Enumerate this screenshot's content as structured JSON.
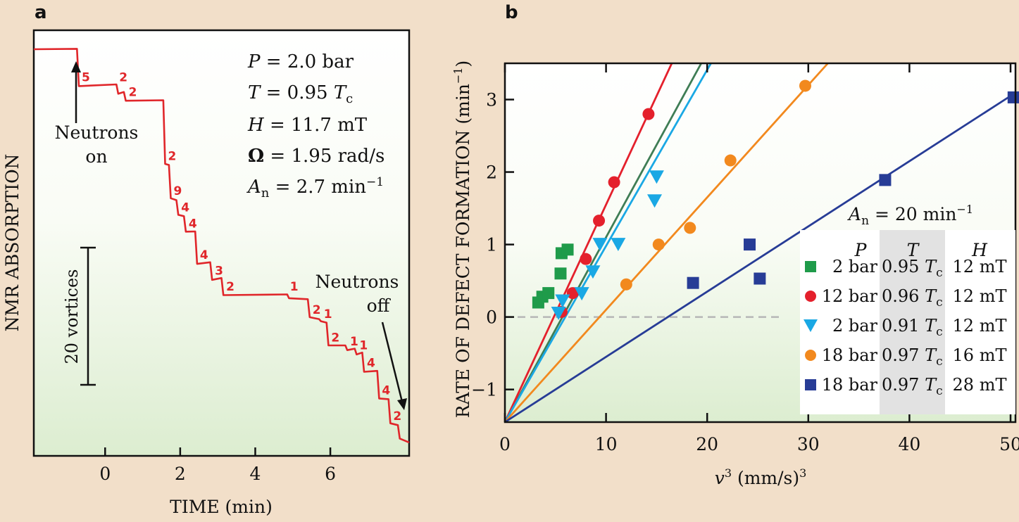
{
  "panel_labels": {
    "a": "a",
    "b": "b"
  },
  "colors": {
    "background": "#f2dfc9",
    "trace": "#e0262a",
    "green": "#1f9b4a",
    "red": "#e4202c",
    "cyan": "#1aa8e4",
    "orange": "#f2891e",
    "navy": "#273c96",
    "green_fit": "#3f7d55"
  },
  "chart_data": [
    {
      "type": "line",
      "title": "",
      "xlabel": "TIME (min)",
      "ylabel": "NMR ABSORPTION",
      "xlim": [
        -1.9,
        8.1
      ],
      "ylim": [
        0,
        100
      ],
      "xticks": [
        0,
        2,
        4,
        6
      ],
      "xtick_labels": [
        "0",
        "2",
        "4",
        "6"
      ],
      "grid": false,
      "series": [
        {
          "name": "NMR absorption trace",
          "x": [
            -1.9,
            -0.75,
            -0.7,
            0.3,
            0.35,
            0.5,
            0.55,
            1.55,
            1.6,
            1.7,
            1.75,
            1.9,
            1.95,
            2.1,
            2.15,
            2.4,
            2.45,
            2.8,
            2.85,
            3.1,
            3.15,
            4.85,
            4.9,
            5.4,
            5.45,
            5.7,
            5.75,
            5.9,
            5.95,
            6.4,
            6.45,
            6.65,
            6.7,
            6.85,
            6.9,
            7.25,
            7.3,
            7.55,
            7.6,
            7.8,
            7.85,
            8.1
          ],
          "y": [
            100,
            100,
            90.8,
            90.8,
            88.9,
            88.9,
            87,
            87,
            70.7,
            70.7,
            61.8,
            61.8,
            57.6,
            57.6,
            53.5,
            53.5,
            45.5,
            45.5,
            41.5,
            41.5,
            37.5,
            37.5,
            36.5,
            36.5,
            31.5,
            31.5,
            30.5,
            30.5,
            24.5,
            24.5,
            23.5,
            23.5,
            22.5,
            22.5,
            18,
            18,
            11,
            11,
            4.5,
            4.5,
            0.6,
            0
          ]
        }
      ],
      "step_labels": [
        {
          "text": "5",
          "x": -0.7
        },
        {
          "text": "2",
          "x": 0.3
        },
        {
          "text": "2",
          "x": 0.55
        },
        {
          "text": "2",
          "x": 1.6
        },
        {
          "text": "9",
          "x": 1.75
        },
        {
          "text": "4",
          "x": 1.95
        },
        {
          "text": "4",
          "x": 2.15
        },
        {
          "text": "4",
          "x": 2.45
        },
        {
          "text": "3",
          "x": 2.85
        },
        {
          "text": "2",
          "x": 3.15
        },
        {
          "text": "1",
          "x": 4.85
        },
        {
          "text": "2",
          "x": 5.45
        },
        {
          "text": "1",
          "x": 5.75
        },
        {
          "text": "2",
          "x": 5.95
        },
        {
          "text": "1",
          "x": 6.45
        },
        {
          "text": "1",
          "x": 6.7
        },
        {
          "text": "4",
          "x": 6.9
        },
        {
          "text": "4",
          "x": 7.3
        },
        {
          "text": "2",
          "x": 7.6
        }
      ],
      "annotations": {
        "neutrons_on": [
          "Neutrons",
          "on"
        ],
        "neutrons_off": [
          "Neutrons",
          "off"
        ],
        "scale_bar": "20 vortices"
      },
      "parameters": [
        {
          "sym": "P",
          "eq": " = 2.0 bar"
        },
        {
          "sym": "T",
          "eq": " = 0.95 ",
          "sym2": "T",
          "sub": "c"
        },
        {
          "sym": "H",
          "eq": " = 11.7 mT"
        },
        {
          "sym": "Ω",
          "eq": " = 1.95 rad/s"
        },
        {
          "sym": "A",
          "sub": "n",
          "eq": " = 2.7 min",
          "sup": "−1"
        }
      ]
    },
    {
      "type": "scatter",
      "title": "",
      "xlabel_main": "v",
      "xlabel_sup": "3",
      "xlabel_rest": " (mm/s)",
      "xlabel_sup2": "3",
      "ylabel_main": "RATE OF DEFECT FORMATION (min",
      "ylabel_sup": "−1",
      "ylabel_end": ")",
      "xlim": [
        0,
        50
      ],
      "ylim": [
        -1.45,
        3.5
      ],
      "xticks": [
        0,
        10,
        20,
        30,
        40,
        50
      ],
      "xtick_labels": [
        "0",
        "10",
        "20",
        "30",
        "40",
        "50"
      ],
      "yticks": [
        -1,
        0,
        1,
        2,
        3
      ],
      "ytick_labels": [
        "−1",
        "0",
        "1",
        "2",
        "3"
      ],
      "zero_line": 0,
      "grid": false,
      "series": [
        {
          "name": "2 bar 0.95 Tc 12 mT",
          "marker": "square",
          "color": "#1f9b4a",
          "fit_color": "#3f7d55",
          "x": [
            3.3,
            3.7,
            4.3,
            5.5,
            5.6,
            6.2
          ],
          "y": [
            0.2,
            0.28,
            0.33,
            0.6,
            0.88,
            0.93
          ],
          "fit_slope": 0.255
        },
        {
          "name": "12 bar 0.96 Tc 12 mT",
          "marker": "circle",
          "color": "#e4202c",
          "fit_color": "#e4202c",
          "x": [
            5.6,
            6.7,
            8.0,
            9.3,
            10.8,
            14.2
          ],
          "y": [
            0.07,
            0.33,
            0.8,
            1.33,
            1.86,
            2.8
          ],
          "fit_slope": 0.3
        },
        {
          "name": "2 bar 0.91 Tc 12 mT",
          "marker": "triangle",
          "color": "#1aa8e4",
          "fit_color": "#1aa8e4",
          "x": [
            5.3,
            5.7,
            7.6,
            8.7,
            9.4,
            11.2,
            14.8,
            15.0
          ],
          "y": [
            0.05,
            0.22,
            0.32,
            0.62,
            1.0,
            1.0,
            1.6,
            1.93
          ],
          "fit_slope": 0.243
        },
        {
          "name": "18 bar 0.97 Tc 16 mT",
          "marker": "circle",
          "color": "#f2891e",
          "fit_color": "#f2891e",
          "x": [
            12.0,
            15.2,
            18.3,
            22.3,
            29.7
          ],
          "y": [
            0.45,
            1.0,
            1.23,
            2.16,
            3.19
          ],
          "fit_slope": 0.155
        },
        {
          "name": "18 bar 0.97 Tc 28 mT",
          "marker": "square",
          "color": "#273c96",
          "fit_color": "#273c96",
          "x": [
            18.6,
            24.2,
            25.2,
            37.6,
            50.3
          ],
          "y": [
            0.47,
            1.0,
            0.53,
            1.89,
            3.03
          ],
          "fit_slope": 0.09
        }
      ],
      "fit_intercept": -1.45,
      "legend": {
        "position": "bottom-right",
        "an_label": "A",
        "an_sub": "n",
        "an_value": " =  20 min",
        "an_sup": "−1",
        "headers": [
          "P",
          "T",
          "H"
        ],
        "rows": [
          {
            "p": "2 bar",
            "t": "0.95",
            "h": "12 mT"
          },
          {
            "p": "12 bar",
            "t": "0.96",
            "h": "12 mT"
          },
          {
            "p": "2 bar",
            "t": "0.91",
            "h": "12 mT"
          },
          {
            "p": "18 bar",
            "t": "0.97",
            "h": "16 mT"
          },
          {
            "p": "18 bar",
            "t": "0.97",
            "h": "28 mT"
          }
        ],
        "t_symbol": "T",
        "t_sub": "c"
      }
    }
  ]
}
